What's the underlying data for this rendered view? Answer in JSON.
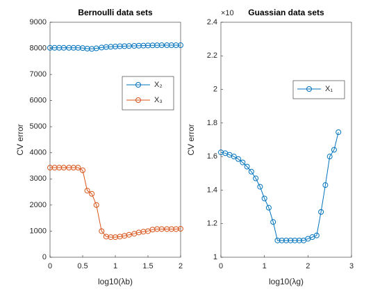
{
  "chart_data": [
    {
      "type": "line",
      "title": "Bernoulli data sets",
      "xlabel": "log10(λb)",
      "ylabel": "CV error",
      "x": [
        0,
        0.07,
        0.14,
        0.21,
        0.29,
        0.36,
        0.43,
        0.5,
        0.57,
        0.64,
        0.71,
        0.79,
        0.86,
        0.93,
        1.0,
        1.07,
        1.14,
        1.21,
        1.29,
        1.36,
        1.43,
        1.5,
        1.57,
        1.64,
        1.71,
        1.79,
        1.86,
        1.93,
        2.0
      ],
      "series": [
        {
          "name": "X₂",
          "color": "#0072bd",
          "values": [
            8020,
            8020,
            8020,
            8020,
            8020,
            8020,
            8020,
            8010,
            7990,
            7980,
            8000,
            8030,
            8050,
            8060,
            8070,
            8080,
            8085,
            8090,
            8095,
            8100,
            8105,
            8110,
            8115,
            8118,
            8120,
            8120,
            8120,
            8120,
            8120
          ]
        },
        {
          "name": "X₃",
          "color": "#d95319",
          "values": [
            3430,
            3430,
            3430,
            3430,
            3430,
            3430,
            3430,
            3330,
            2550,
            2430,
            2000,
            1000,
            790,
            770,
            770,
            790,
            820,
            860,
            900,
            950,
            980,
            1000,
            1060,
            1080,
            1080,
            1080,
            1080,
            1080,
            1090
          ]
        }
      ],
      "xlim": [
        0,
        2
      ],
      "xticks": [
        0,
        0.5,
        1,
        1.5,
        2
      ],
      "ylim": [
        0,
        9000
      ],
      "yticks": [
        0,
        1000,
        2000,
        3000,
        4000,
        5000,
        6000,
        7000,
        8000,
        9000
      ],
      "legend": "upper right"
    },
    {
      "type": "line",
      "title": "Guassian data sets",
      "xlabel": "log10(λg)",
      "ylabel": "CV error",
      "y_offset_text": "×10",
      "x": [
        0,
        0.1,
        0.2,
        0.3,
        0.4,
        0.5,
        0.6,
        0.7,
        0.8,
        0.9,
        1.0,
        1.1,
        1.2,
        1.3,
        1.4,
        1.5,
        1.6,
        1.7,
        1.8,
        1.9,
        2.0,
        2.1,
        2.2,
        2.3,
        2.4,
        2.5,
        2.6,
        2.7
      ],
      "series": [
        {
          "name": "X₁",
          "color": "#0072bd",
          "values": [
            1.625,
            1.62,
            1.61,
            1.6,
            1.585,
            1.565,
            1.54,
            1.51,
            1.47,
            1.42,
            1.35,
            1.295,
            1.21,
            1.1,
            1.1,
            1.1,
            1.1,
            1.1,
            1.1,
            1.1,
            1.11,
            1.12,
            1.13,
            1.27,
            1.43,
            1.6,
            1.64,
            1.745
          ]
        }
      ],
      "xlim": [
        0,
        3
      ],
      "xticks": [
        0,
        1,
        2,
        3
      ],
      "ylim": [
        1,
        2.4
      ],
      "yticks": [
        1,
        1.2,
        1.4,
        1.6,
        1.8,
        2,
        2.2,
        2.4
      ],
      "legend": "upper right"
    }
  ]
}
